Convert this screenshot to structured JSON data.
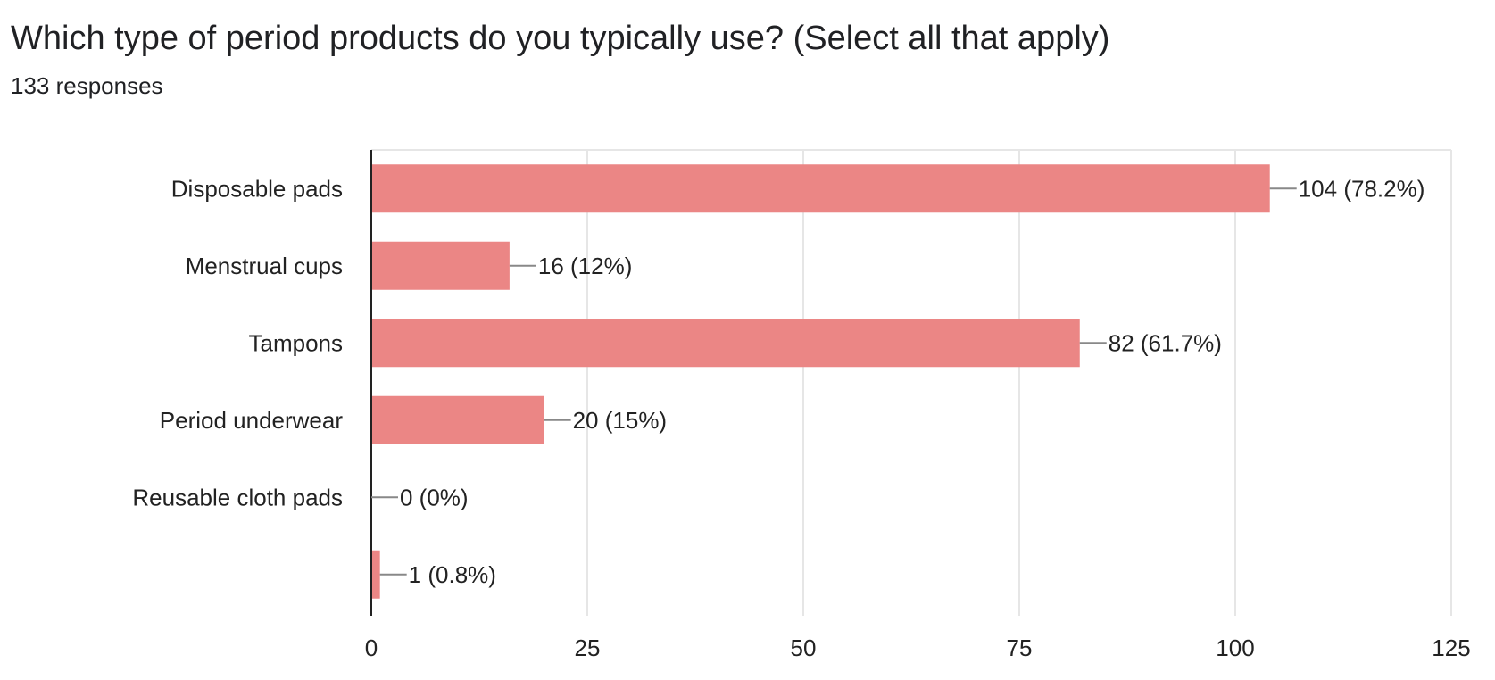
{
  "header": {
    "title": "Which type of period products do you typically use? (Select all that apply)",
    "responses": "133 responses"
  },
  "colors": {
    "bar": "#eb8685",
    "grid": "#e6e6e6",
    "axis": "#222222",
    "connector": "#888888"
  },
  "chart_data": {
    "type": "bar",
    "orientation": "horizontal",
    "title": "Which type of period products do you typically use? (Select all that apply)",
    "subtitle": "133 responses",
    "categories": [
      "Disposable pads",
      "Menstrual cups",
      "Tampons",
      "Period underwear",
      "Reusable cloth pads",
      ""
    ],
    "values": [
      104,
      16,
      82,
      20,
      0,
      1
    ],
    "value_labels": [
      "104 (78.2%)",
      "16 (12%)",
      "82 (61.7%)",
      "20 (15%)",
      "0 (0%)",
      "1 (0.8%)"
    ],
    "xlim": [
      0,
      125
    ],
    "ticks": [
      0,
      25,
      50,
      75,
      100,
      125
    ],
    "tick_labels": [
      "0",
      "25",
      "50",
      "75",
      "100",
      "125"
    ],
    "grid": true,
    "xlabel": "",
    "ylabel": ""
  }
}
